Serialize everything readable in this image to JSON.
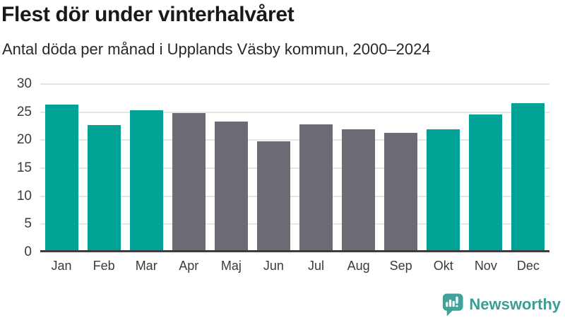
{
  "header": {
    "title": "Flest dör under vinterhalvåret",
    "subtitle": "Antal döda per månad i Upplands Väsby kommun, 2000–2024"
  },
  "chart_data": {
    "type": "bar",
    "title": "Flest dör under vinterhalvåret",
    "subtitle": "Antal döda per månad i Upplands Väsby kommun, 2000–2024",
    "categories": [
      "Jan",
      "Feb",
      "Mar",
      "Apr",
      "Maj",
      "Jun",
      "Jul",
      "Aug",
      "Sep",
      "Okt",
      "Nov",
      "Dec"
    ],
    "values": [
      26.0,
      22.3,
      25.0,
      24.4,
      23.0,
      19.4,
      22.4,
      21.5,
      20.9,
      21.6,
      24.2,
      26.2
    ],
    "groups": [
      "winter",
      "winter",
      "winter",
      "summer",
      "summer",
      "summer",
      "summer",
      "summer",
      "summer",
      "winter",
      "winter",
      "winter"
    ],
    "colors": {
      "winter": "#00a396",
      "summer": "#6c6a72"
    },
    "xlabel": "",
    "ylabel": "",
    "ylim": [
      0,
      30
    ],
    "yticks": [
      0,
      5,
      10,
      15,
      20,
      25,
      30
    ],
    "grid": true,
    "gridline_color": "#e4e4e4",
    "axis_line_color": "#3d3d3d",
    "legend": "none"
  },
  "footer": {
    "brand": "Newsworthy",
    "brand_color": "#3d9c94",
    "logo_icon": "newsworthy-bar-chart-speech-bubble-icon",
    "logo_bubble_color": "#3fa29b"
  }
}
